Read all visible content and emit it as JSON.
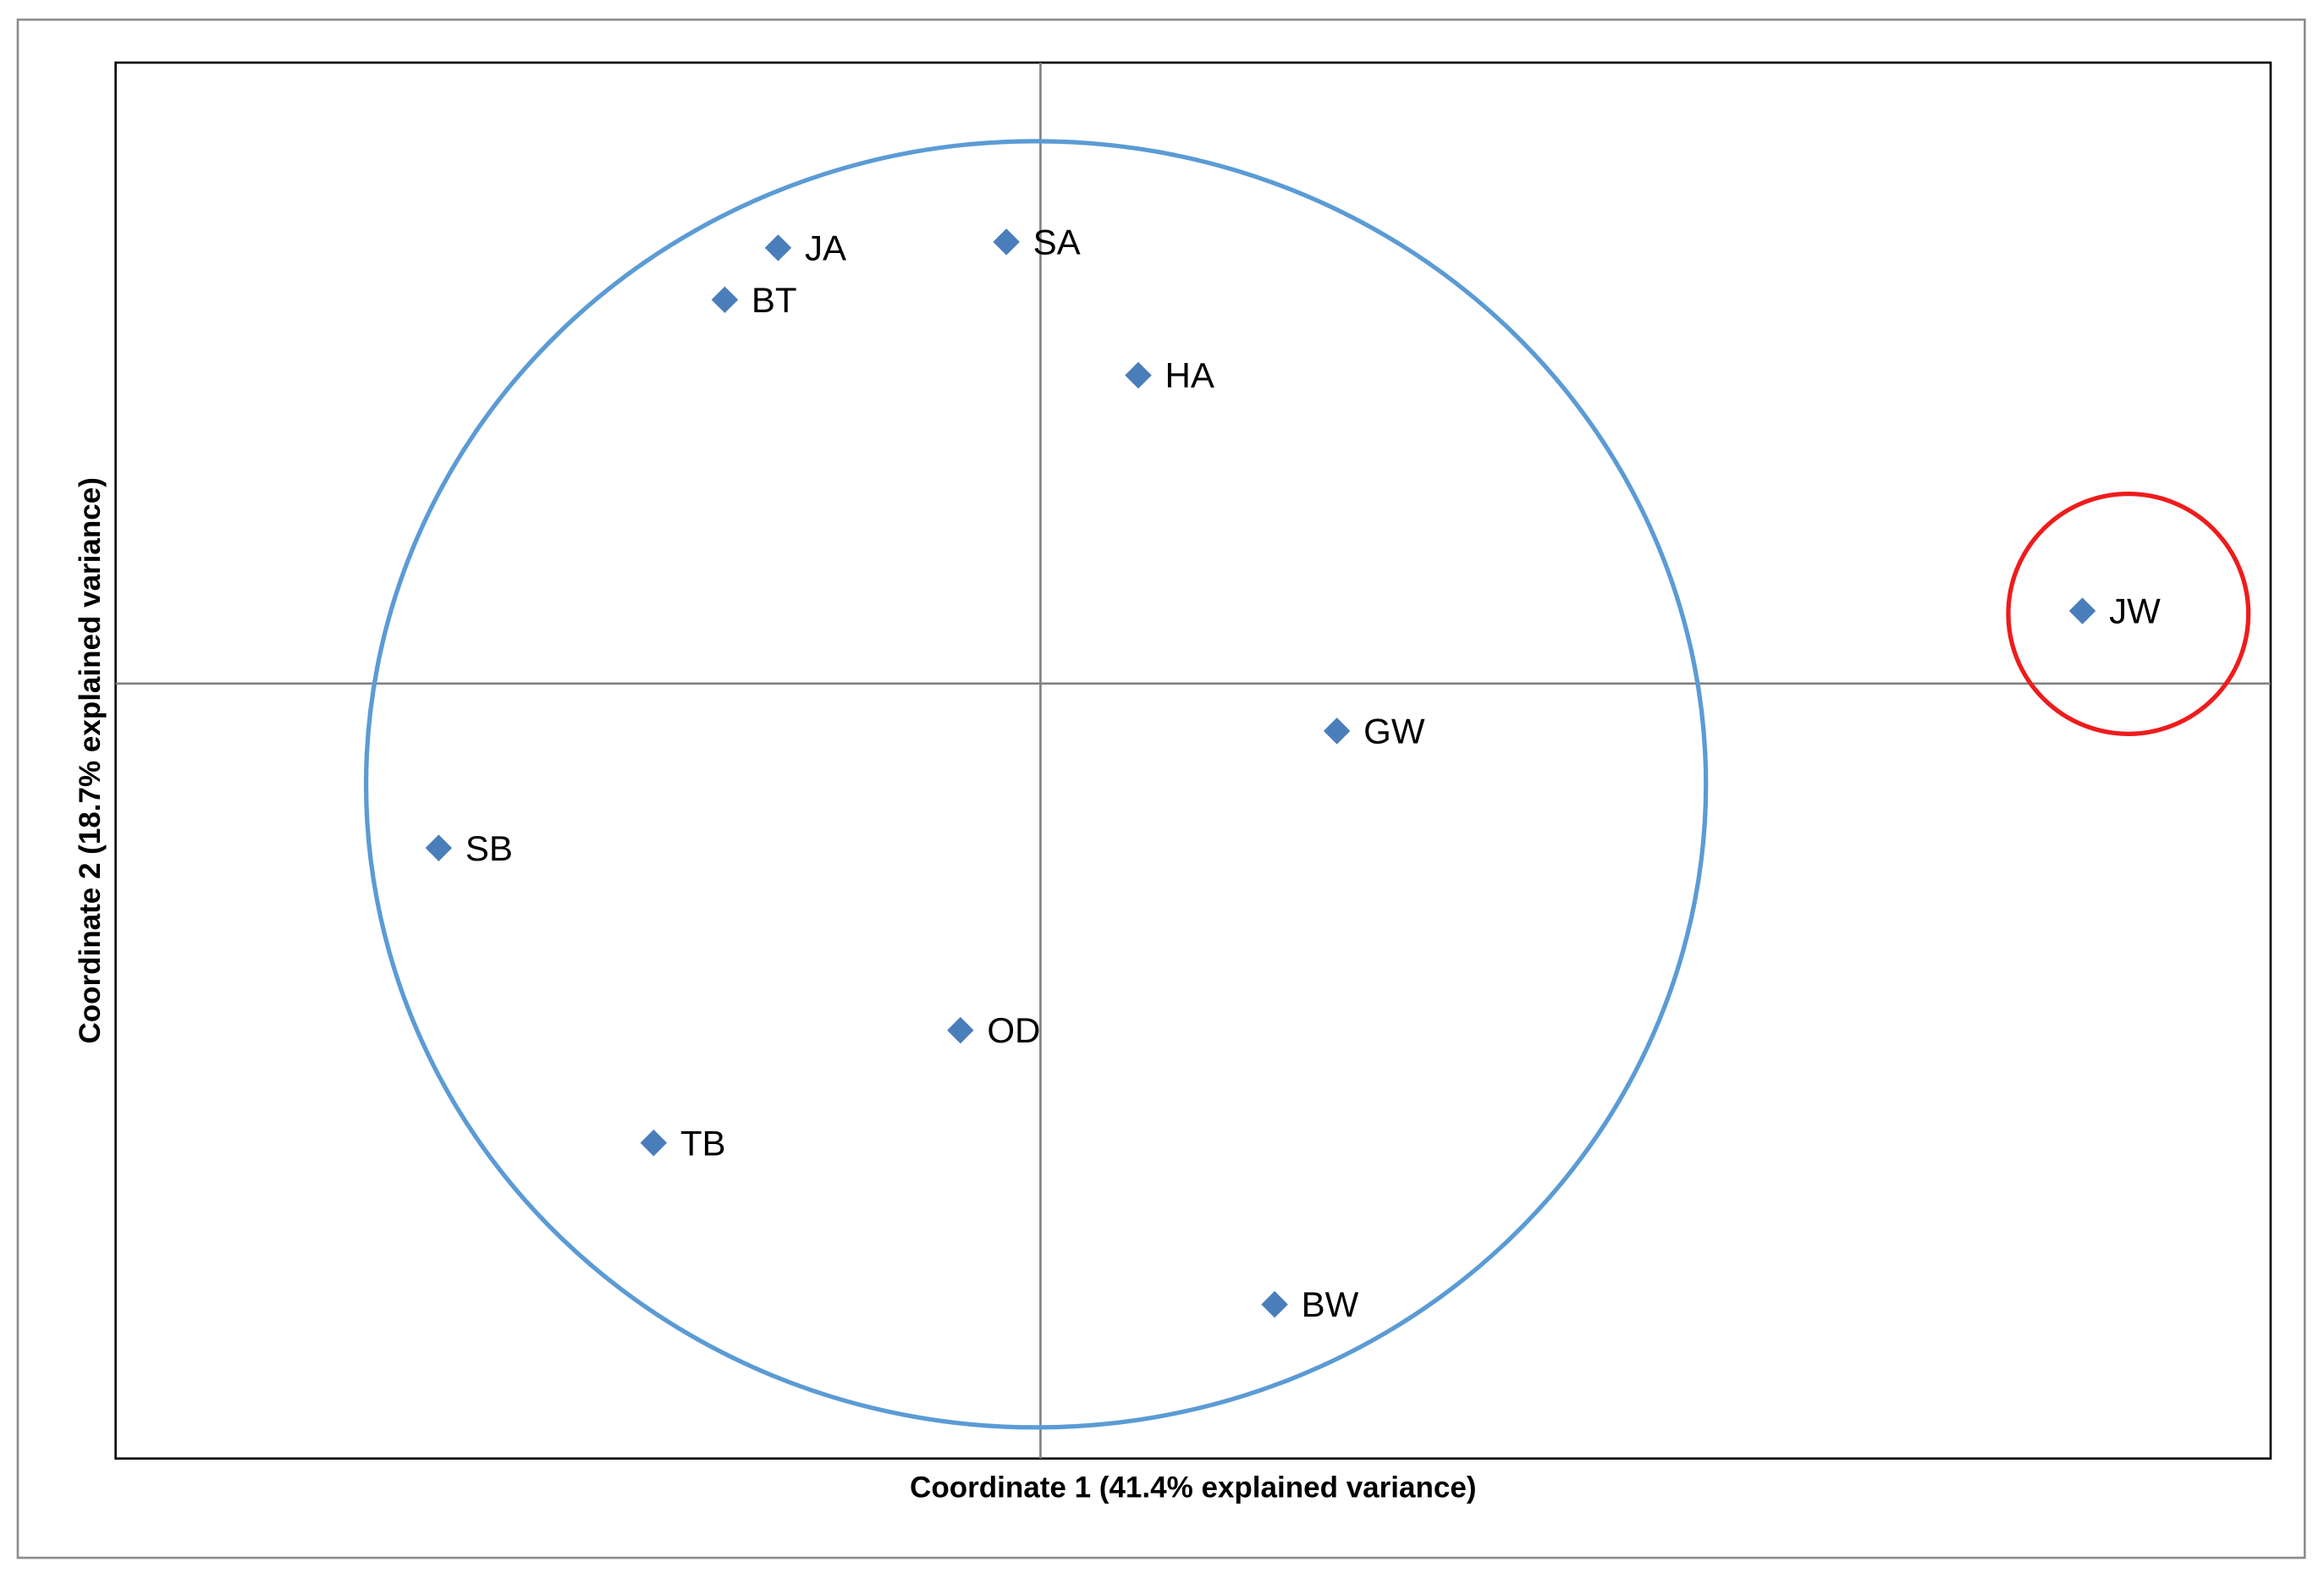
{
  "chart_data": {
    "type": "scatter",
    "x_label": "Coordinate 1 (41.4% explained variance)",
    "y_label": "Coordinate 2 (18.7% explained variance)",
    "labels": [
      "JA",
      "SA",
      "BT",
      "HA",
      "JW",
      "GW",
      "SB",
      "OD",
      "TB",
      "BW"
    ],
    "x": [
      -1.77,
      -0.23,
      -2.13,
      0.66,
      7.03,
      2.0,
      -4.06,
      -0.54,
      -2.61,
      1.58
    ],
    "values": [
      2.94,
      2.98,
      2.59,
      2.08,
      0.49,
      -0.32,
      -1.11,
      -2.34,
      -3.1,
      -4.19
    ],
    "color": "#4a7ebb",
    "xlim": [
      -6.24,
      8.3
    ],
    "ylim": [
      -5.23,
      4.19
    ]
  }
}
